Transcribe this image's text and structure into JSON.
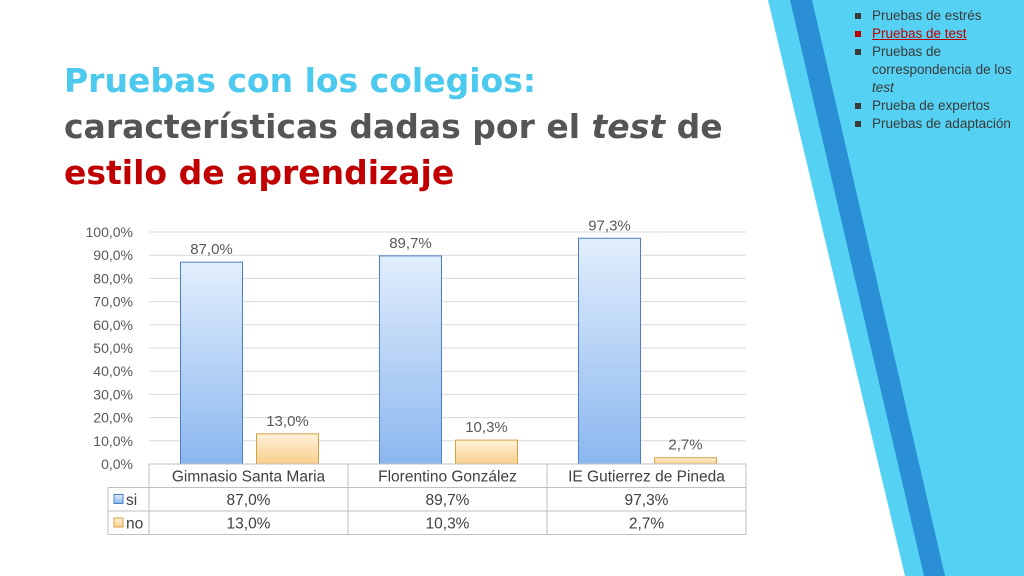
{
  "slide": {
    "title_part1": "Pruebas con los colegios:",
    "title_part2_a": "características dadas por el ",
    "title_part2_em": "test",
    "title_part2_b": " de",
    "title_part3": "estilo de aprendizaje"
  },
  "nav": {
    "items": [
      {
        "label": "Pruebas de estrés",
        "active": false
      },
      {
        "label": "Pruebas de test",
        "active": true
      },
      {
        "label_a": "Pruebas de correspondencia de los ",
        "label_em": "test",
        "active": false
      },
      {
        "label": "Prueba de expertos",
        "active": false
      },
      {
        "label": "Pruebas de adaptación",
        "active": false
      }
    ]
  },
  "colors": {
    "accent_cyan": "#4cc9ee",
    "accent_blue": "#2a8fd6",
    "title_red": "#c00000",
    "si_fill": "#9cc3f2",
    "no_fill": "#fbd9a3"
  },
  "chart_data": {
    "type": "bar",
    "categories": [
      "Gimnasio Santa Maria",
      "Florentino González",
      "IE Gutierrez de Pineda"
    ],
    "series": [
      {
        "name": "si",
        "values": [
          87.0,
          89.7,
          97.3
        ],
        "labels": [
          "87,0%",
          "89,7%",
          "97,3%"
        ],
        "color": "#9cc3f2"
      },
      {
        "name": "no",
        "values": [
          13.0,
          10.3,
          2.7
        ],
        "labels": [
          "13,0%",
          "10,3%",
          "2,7%"
        ],
        "color": "#fbd9a3"
      }
    ],
    "yticks": [
      "0,0%",
      "10,0%",
      "20,0%",
      "30,0%",
      "40,0%",
      "50,0%",
      "60,0%",
      "70,0%",
      "80,0%",
      "90,0%",
      "100,0%"
    ],
    "ylim": [
      0,
      100
    ],
    "grid": true,
    "legend": "data-table"
  }
}
